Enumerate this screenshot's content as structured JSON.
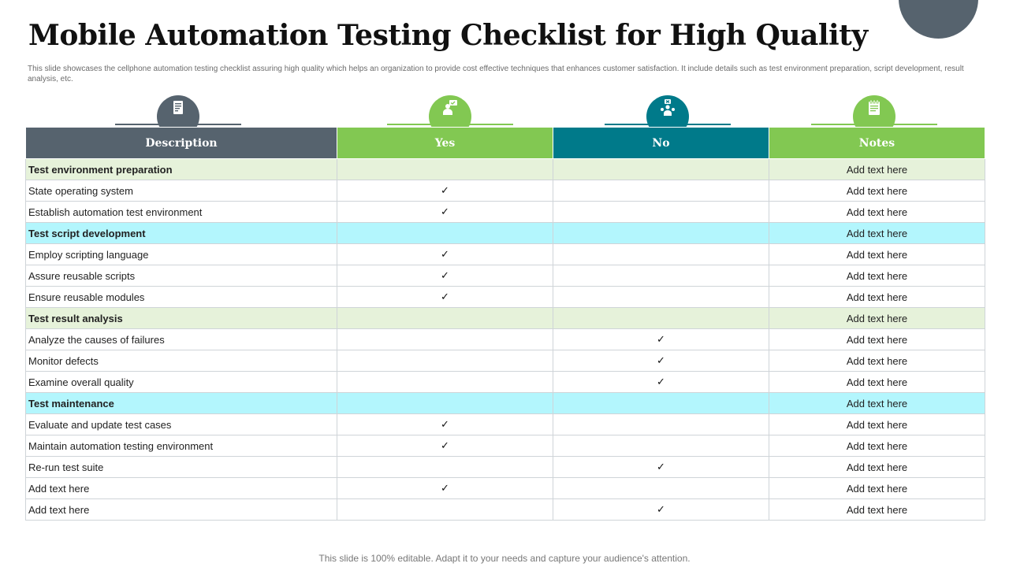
{
  "title": "Mobile Automation Testing Checklist for High Quality",
  "subtitle": "This slide showcases the cellphone automation testing checklist assuring high quality which helps an organization to provide cost effective techniques that enhances customer satisfaction. It include details such as test environment preparation, script development, result analysis, etc.",
  "footer": "This slide is 100% editable. Adapt it to your needs and capture your audience's attention.",
  "check_mark": "✓",
  "colors": {
    "slate": "#56636e",
    "green": "#82c852",
    "teal": "#007a8a",
    "section_green": "#e6f2da",
    "section_cyan": "#b3f6fd"
  },
  "columns": [
    {
      "label": "Description",
      "icon": "document-icon"
    },
    {
      "label": "Yes",
      "icon": "presenter-icon"
    },
    {
      "label": "No",
      "icon": "team-icon"
    },
    {
      "label": "Notes",
      "icon": "notepad-icon"
    }
  ],
  "rows": [
    {
      "type": "section",
      "tone": "green",
      "description": "Test environment preparation",
      "yes": "",
      "no": "",
      "notes": "Add text here"
    },
    {
      "type": "item",
      "description": "State operating system",
      "yes": "✓",
      "no": "",
      "notes": "Add text here"
    },
    {
      "type": "item",
      "description": "Establish automation test environment",
      "yes": "✓",
      "no": "",
      "notes": "Add text here"
    },
    {
      "type": "section",
      "tone": "cyan",
      "description": "Test script development",
      "yes": "",
      "no": "",
      "notes": "Add text here"
    },
    {
      "type": "item",
      "description": "Employ scripting language",
      "yes": "✓",
      "no": "",
      "notes": "Add text here"
    },
    {
      "type": "item",
      "description": "Assure reusable scripts",
      "yes": "✓",
      "no": "",
      "notes": "Add text here"
    },
    {
      "type": "item",
      "description": "Ensure reusable modules",
      "yes": "✓",
      "no": "",
      "notes": "Add text here"
    },
    {
      "type": "section",
      "tone": "green",
      "description": "Test result analysis",
      "yes": "",
      "no": "",
      "notes": "Add text here"
    },
    {
      "type": "item",
      "description": "Analyze the causes of failures",
      "yes": "",
      "no": "✓",
      "notes": "Add text here"
    },
    {
      "type": "item",
      "description": "Monitor defects",
      "yes": "",
      "no": "✓",
      "notes": "Add text here"
    },
    {
      "type": "item",
      "description": "Examine overall quality",
      "yes": "",
      "no": "✓",
      "notes": "Add text here"
    },
    {
      "type": "section",
      "tone": "cyan",
      "description": "Test maintenance",
      "yes": "",
      "no": "",
      "notes": "Add text here"
    },
    {
      "type": "item",
      "description": "Evaluate and update test cases",
      "yes": "✓",
      "no": "",
      "notes": "Add text here"
    },
    {
      "type": "item",
      "description": "Maintain automation testing environment",
      "yes": "✓",
      "no": "",
      "notes": "Add text here"
    },
    {
      "type": "item",
      "description": "Re-run test suite",
      "yes": "",
      "no": "✓",
      "notes": "Add text here"
    },
    {
      "type": "item",
      "description": "Add text here",
      "yes": "✓",
      "no": "",
      "notes": "Add text here"
    },
    {
      "type": "item",
      "description": "Add text here",
      "yes": "",
      "no": "✓",
      "notes": "Add text here"
    }
  ]
}
